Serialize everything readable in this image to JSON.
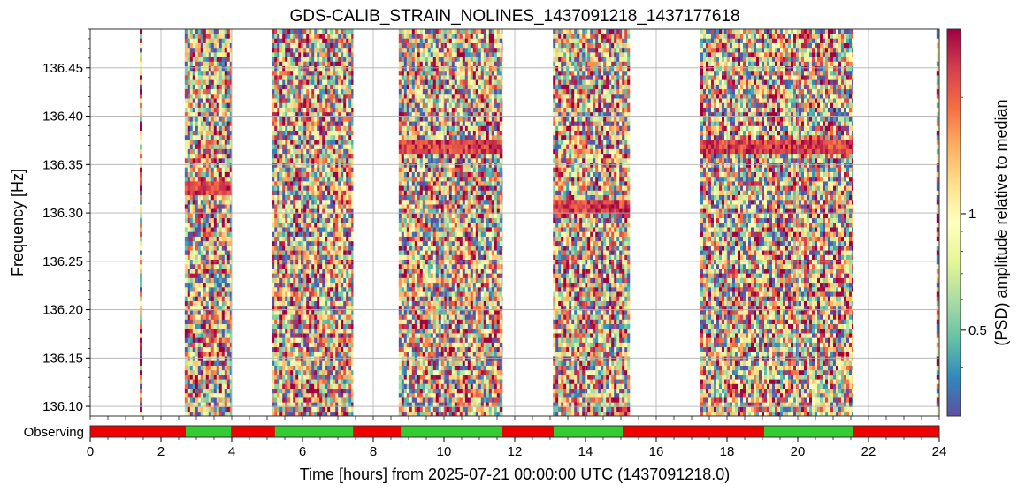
{
  "chart_data": {
    "type": "heatmap",
    "title": "GDS-CALIB_STRAIN_NOLINES_1437091218_1437177618",
    "xlabel": "Time [hours] from 2025-07-21 00:00:00 UTC (1437091218.0)",
    "ylabel": "Frequency [Hz]",
    "colorbar_label": "(PSD) amplitude relative to median",
    "xlim": [
      0,
      24
    ],
    "ylim": [
      136.09,
      136.49
    ],
    "x_ticks": [
      "0",
      "2",
      "4",
      "6",
      "8",
      "10",
      "12",
      "14",
      "16",
      "18",
      "20",
      "22",
      "24"
    ],
    "y_ticks": [
      {
        "value": 136.1,
        "label": "136.10"
      },
      {
        "value": 136.15,
        "label": "136.15"
      },
      {
        "value": 136.2,
        "label": "136.20"
      },
      {
        "value": 136.25,
        "label": "136.25"
      },
      {
        "value": 136.3,
        "label": "136.30"
      },
      {
        "value": 136.35,
        "label": "136.35"
      },
      {
        "value": 136.4,
        "label": "136.40"
      },
      {
        "value": 136.45,
        "label": "136.45"
      }
    ],
    "colorbar_ticks": [
      {
        "value": 1,
        "label": "1"
      },
      {
        "value": 0.5,
        "label": "0.5"
      }
    ],
    "colorbar_range": [
      0.3,
      3
    ],
    "colorbar_scale": "log",
    "colormap": [
      "#5e4fa2",
      "#3288bd",
      "#66c2a5",
      "#abdda4",
      "#e6f598",
      "#ffffbf",
      "#fee08b",
      "#fdae61",
      "#f46d43",
      "#d53e4f",
      "#9e0142"
    ],
    "grid": true,
    "data_segments": [
      {
        "start": 1.4,
        "end": 1.46
      },
      {
        "start": 2.67,
        "end": 3.98
      },
      {
        "start": 5.13,
        "end": 7.43
      },
      {
        "start": 8.72,
        "end": 11.65
      },
      {
        "start": 13.08,
        "end": 15.25
      },
      {
        "start": 17.25,
        "end": 21.55
      },
      {
        "start": 23.92,
        "end": 24.0
      }
    ],
    "hot_bands": [
      {
        "start": 2.67,
        "end": 3.98,
        "f_low": 136.32,
        "f_high": 136.335
      },
      {
        "start": 8.72,
        "end": 11.65,
        "f_low": 136.36,
        "f_high": 136.375
      },
      {
        "start": 13.08,
        "end": 15.25,
        "f_low": 136.3,
        "f_high": 136.315
      },
      {
        "start": 17.25,
        "end": 21.55,
        "f_low": 136.36,
        "f_high": 136.375
      }
    ],
    "state_bar": {
      "label": "Observing",
      "on_color": "#33cc33",
      "off_color": "#ee0000",
      "on_segments": [
        {
          "start": 2.7,
          "end": 3.98
        },
        {
          "start": 5.22,
          "end": 7.43
        },
        {
          "start": 8.78,
          "end": 11.65
        },
        {
          "start": 13.1,
          "end": 15.05
        },
        {
          "start": 19.05,
          "end": 21.55
        }
      ]
    }
  }
}
